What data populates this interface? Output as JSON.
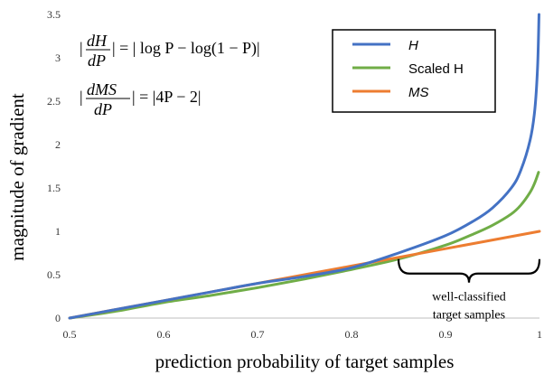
{
  "chart_data": {
    "type": "line",
    "xlabel": "prediction probability of target samples",
    "ylabel": "magnitude of gradient",
    "xlim": [
      0.5,
      1.0
    ],
    "ylim": [
      0,
      3.5
    ],
    "x_ticks": [
      "0.5",
      "0.6",
      "0.7",
      "0.8",
      "0.9",
      "1"
    ],
    "y_ticks": [
      "0",
      "0.5",
      "1",
      "1.5",
      "2",
      "2.5",
      "3",
      "3.5"
    ],
    "grid": false,
    "legend_position": "top-right",
    "series": [
      {
        "name": "H",
        "color": "#4472C4",
        "x": [
          0.5,
          0.55,
          0.6,
          0.65,
          0.7,
          0.75,
          0.8,
          0.85,
          0.9,
          0.93,
          0.95,
          0.97,
          0.98,
          0.99,
          0.995,
          0.998,
          0.9995
        ],
        "y": [
          0,
          0.1,
          0.2,
          0.3,
          0.4,
          0.48,
          0.58,
          0.75,
          0.95,
          1.12,
          1.27,
          1.5,
          1.7,
          2.05,
          2.4,
          2.9,
          3.5
        ]
      },
      {
        "name": "Scaled H",
        "color": "#70AD47",
        "x": [
          0.5,
          0.55,
          0.6,
          0.65,
          0.7,
          0.75,
          0.8,
          0.85,
          0.9,
          0.93,
          0.95,
          0.97,
          0.98,
          0.99,
          0.995,
          0.999
        ],
        "y": [
          0,
          0.08,
          0.18,
          0.26,
          0.35,
          0.45,
          0.56,
          0.68,
          0.84,
          0.97,
          1.07,
          1.2,
          1.3,
          1.45,
          1.56,
          1.68
        ]
      },
      {
        "name": "MS",
        "color": "#ED7D31",
        "x": [
          0.5,
          0.6,
          0.7,
          0.8,
          0.9,
          1.0
        ],
        "y": [
          0,
          0.2,
          0.4,
          0.6,
          0.8,
          1.0
        ]
      }
    ],
    "annotation": {
      "line1": "well-classified",
      "line2": "target samples",
      "x_start": 0.85,
      "x_end": 1.0,
      "y": 0.68
    },
    "formulas": {
      "f1_num": "dH",
      "f1_den": "dP",
      "f1_rhs": "| = | log P − log(1 − P)|",
      "f2_num": "dMS",
      "f2_den": "dP",
      "f2_rhs": "| = |4P − 2|"
    }
  }
}
